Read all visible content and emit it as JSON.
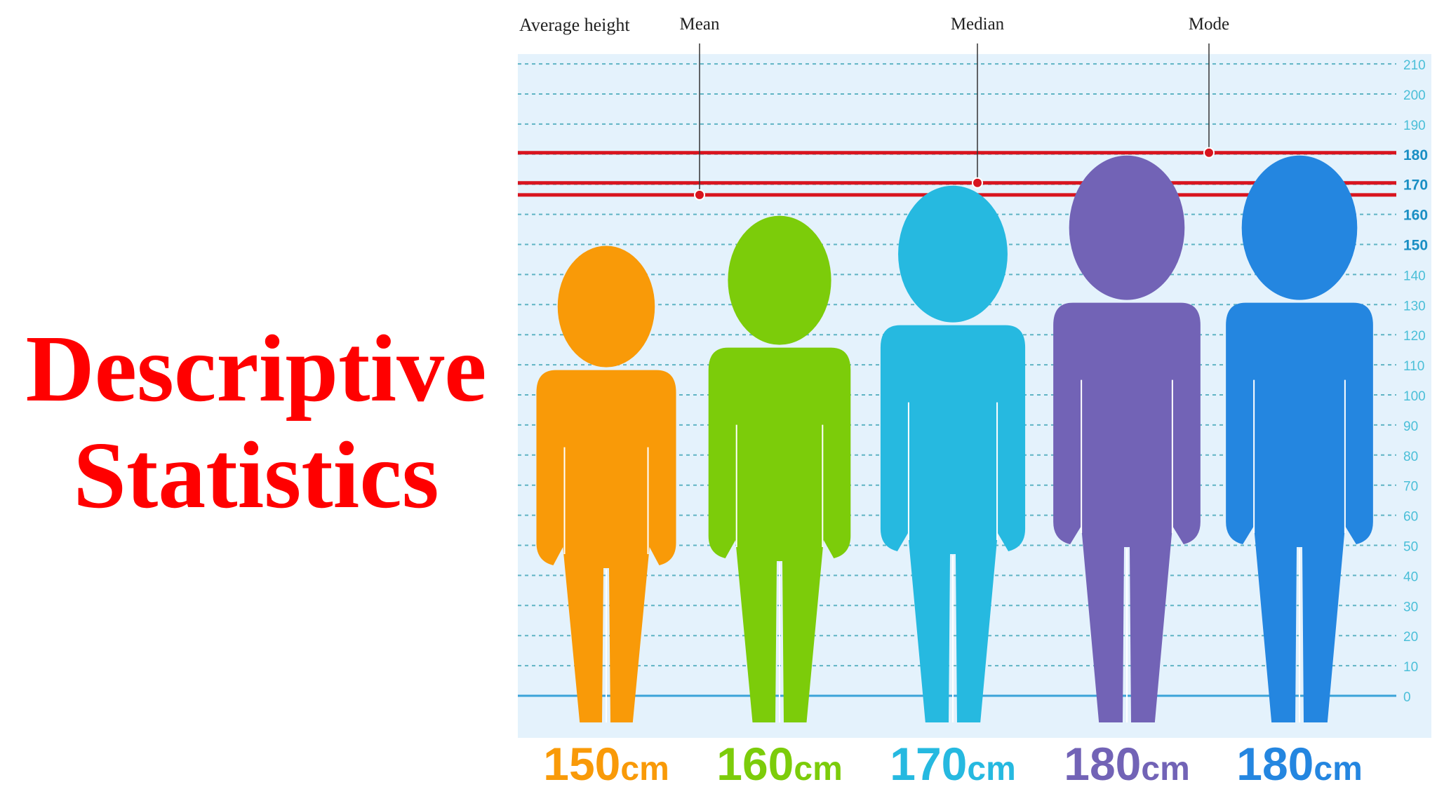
{
  "slide": {
    "title_line1": "Descriptive",
    "title_line2": "Statistics",
    "title_color": "#ff0000"
  },
  "figure": {
    "header_label": "Average height",
    "markers": [
      {
        "label": "Mean",
        "value": 166
      },
      {
        "label": "Median",
        "value": 170
      },
      {
        "label": "Mode",
        "value": 180
      }
    ],
    "axis": {
      "min": 0,
      "max": 210,
      "step": 10,
      "bold_ticks": [
        150,
        160,
        170,
        180
      ]
    },
    "people": [
      {
        "height_cm": 150,
        "label_number": "150",
        "label_unit": "cm",
        "color": "#f99a08"
      },
      {
        "height_cm": 160,
        "label_number": "160",
        "label_unit": "cm",
        "color": "#7ccc0a"
      },
      {
        "height_cm": 170,
        "label_number": "170",
        "label_unit": "cm",
        "color": "#26b9e0"
      },
      {
        "height_cm": 180,
        "label_number": "180",
        "label_unit": "cm",
        "color": "#7263b6"
      },
      {
        "height_cm": 180,
        "label_number": "180",
        "label_unit": "cm",
        "color": "#2486e0"
      }
    ],
    "colors": {
      "background": "#e4f2fc",
      "gridline": "#5fb4c4",
      "tick_text": "#4bbfd8",
      "tick_text_bold": "#1a8fc4",
      "marker_line": "#d8141e",
      "baseline": "#3aa3d8"
    }
  }
}
